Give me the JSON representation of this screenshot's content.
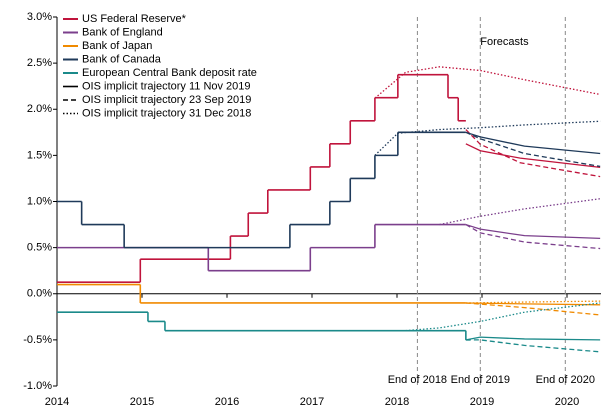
{
  "chart_data": {
    "type": "line",
    "step": true,
    "xlim": [
      2014,
      2020.4
    ],
    "xticks": [
      2014,
      2015,
      2016,
      2017,
      2018,
      2019,
      2020
    ],
    "ylim": [
      -1,
      3
    ],
    "yticks": [
      {
        "value": -1,
        "label": "-1.0%"
      },
      {
        "value": -0.5,
        "label": "-0.5%"
      },
      {
        "value": 0,
        "label": "0.0%"
      },
      {
        "value": 0.5,
        "label": "0.5%"
      },
      {
        "value": 1,
        "label": "1.0%"
      },
      {
        "value": 1.5,
        "label": "1.5%"
      },
      {
        "value": 2,
        "label": "2.0%"
      },
      {
        "value": 2.5,
        "label": "2.5%"
      },
      {
        "value": 3,
        "label": "3.0%"
      }
    ],
    "legend": "top-left",
    "trajectories": [
      {
        "name": "OIS implicit trajectory 11 Nov 2019",
        "dash": "solid"
      },
      {
        "name": "OIS implicit trajectory 23 Sep 2019",
        "dash": "dashed"
      },
      {
        "name": "OIS implicit trajectory 31 Dec 2018",
        "dash": "dotted"
      }
    ],
    "annotations": [
      {
        "text": "Forecasts",
        "x": 2018.98,
        "y": 2.73
      },
      {
        "text": "End of 2018",
        "x": 2018.24,
        "vline": true
      },
      {
        "text": "End of 2019",
        "x": 2018.98,
        "vline": true
      },
      {
        "text": "End of 2020",
        "x": 2019.98,
        "vline": true
      }
    ],
    "series": [
      {
        "name": "US Federal Reserve*",
        "color": "#c0143c",
        "x": [
          2014,
          2014.98,
          2016.04,
          2016.25,
          2016.48,
          2016.98,
          2017.21,
          2017.45,
          2017.74,
          2018.01,
          2018.6,
          2018.72
        ],
        "values": [
          0.125,
          0.375,
          0.625,
          0.875,
          1.125,
          1.375,
          1.625,
          1.875,
          2.125,
          2.375,
          2.125,
          1.875
        ],
        "end": 2018.81,
        "forecasts": [
          {
            "x": [
              2018.81,
              2018.98,
              2019.45,
              2020.39
            ],
            "values": [
              1.625,
              1.55,
              1.47,
              1.37
            ]
          },
          {
            "x": [
              2018.81,
              2018.98,
              2019.45,
              2020.39
            ],
            "values": [
              1.78,
              1.62,
              1.42,
              1.27
            ]
          },
          {
            "x": [
              2017.74,
              2018.1,
              2018.5,
              2018.98,
              2019.5,
              2020.39
            ],
            "values": [
              2.12,
              2.4,
              2.46,
              2.42,
              2.32,
              2.16
            ]
          }
        ]
      },
      {
        "name": "Bank of England",
        "color": "#7b3f8c",
        "x": [
          2014,
          2015.78,
          2016.98,
          2017.74
        ],
        "values": [
          0.5,
          0.25,
          0.5,
          0.75
        ],
        "end": 2018.81,
        "forecasts": [
          {
            "x": [
              2018.81,
              2018.98,
              2019.5,
              2020.39
            ],
            "values": [
              0.75,
              0.7,
              0.63,
              0.6
            ]
          },
          {
            "x": [
              2018.81,
              2018.98,
              2019.5,
              2020.39
            ],
            "values": [
              0.75,
              0.66,
              0.56,
              0.49
            ]
          },
          {
            "x": [
              2018.5,
              2018.98,
              2019.5,
              2020.39
            ],
            "values": [
              0.75,
              0.84,
              0.92,
              1.03
            ]
          }
        ]
      },
      {
        "name": "Bank of Japan",
        "color": "#f08a00",
        "x": [
          2014,
          2014.98
        ],
        "values": [
          0.1,
          -0.1
        ],
        "end": 2018.81,
        "forecasts": [
          {
            "x": [
              2018.81,
              2019.5,
              2020.39
            ],
            "values": [
              -0.1,
              -0.11,
              -0.12
            ]
          },
          {
            "x": [
              2018.81,
              2019.5,
              2020.39
            ],
            "values": [
              -0.1,
              -0.15,
              -0.23
            ]
          },
          {
            "x": [
              2018.81,
              2019.5,
              2020.39
            ],
            "values": [
              -0.1,
              -0.09,
              -0.08
            ]
          }
        ]
      },
      {
        "name": "Bank of Canada",
        "color": "#1f3a5a",
        "x": [
          2014,
          2014.29,
          2014.79,
          2016.74,
          2017.21,
          2017.45,
          2017.74,
          2018.01
        ],
        "values": [
          1,
          0.75,
          0.5,
          0.75,
          1,
          1.25,
          1.5,
          1.75
        ],
        "end": 2018.81,
        "forecasts": [
          {
            "x": [
              2018.81,
              2018.98,
              2019.5,
              2020.39
            ],
            "values": [
              1.75,
              1.7,
              1.6,
              1.52
            ]
          },
          {
            "x": [
              2018.81,
              2018.98,
              2019.5,
              2020.39
            ],
            "values": [
              1.75,
              1.68,
              1.52,
              1.38
            ]
          },
          {
            "x": [
              2017.74,
              2018.01,
              2018.5,
              2018.98,
              2019.5,
              2020.39
            ],
            "values": [
              1.5,
              1.74,
              1.78,
              1.8,
              1.83,
              1.87
            ]
          }
        ]
      },
      {
        "name": "European Central Bank deposit rate",
        "color": "#1b8a8a",
        "x": [
          2014,
          2015.07,
          2015.27,
          2018.81
        ],
        "values": [
          -0.2,
          -0.3,
          -0.4,
          -0.5
        ],
        "end": 2018.86,
        "forecasts": [
          {
            "x": [
              2018.81,
              2018.98,
              2019.5,
              2020.39
            ],
            "values": [
              -0.5,
              -0.47,
              -0.49,
              -0.5
            ]
          },
          {
            "x": [
              2018.81,
              2018.98,
              2019.5,
              2020.39
            ],
            "values": [
              -0.5,
              -0.5,
              -0.56,
              -0.63
            ]
          },
          {
            "x": [
              2018.1,
              2018.5,
              2018.98,
              2019.5,
              2020.39
            ],
            "values": [
              -0.4,
              -0.37,
              -0.3,
              -0.2,
              -0.1
            ]
          }
        ]
      }
    ]
  }
}
